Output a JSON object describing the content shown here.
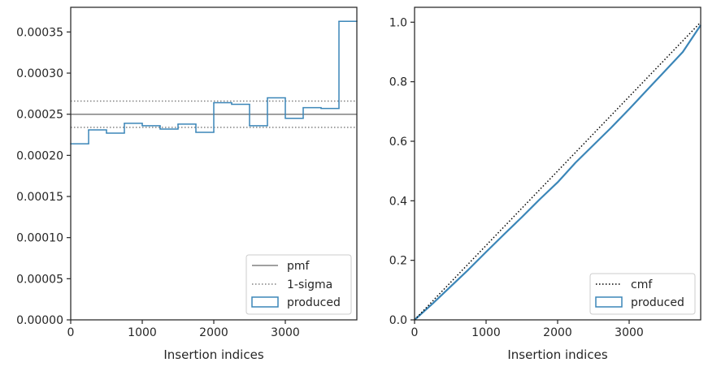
{
  "chart_data": [
    {
      "type": "step",
      "xlabel": "Insertion indices",
      "xlim": [
        0,
        4000
      ],
      "ylim": [
        0,
        0.00038
      ],
      "x_ticks": [
        0,
        1000,
        2000,
        3000
      ],
      "x_tick_labels": [
        "0",
        "1000",
        "2000",
        "3000"
      ],
      "y_ticks": [
        0,
        5e-05,
        0.0001,
        0.00015,
        0.0002,
        0.00025,
        0.0003,
        0.00035
      ],
      "y_tick_labels": [
        "0.00000",
        "0.00005",
        "0.00010",
        "0.00015",
        "0.00020",
        "0.00025",
        "0.00030",
        "0.00035"
      ],
      "bin_edges": [
        0,
        250,
        500,
        750,
        1000,
        1250,
        1500,
        1750,
        2000,
        2250,
        2500,
        2750,
        3000,
        3250,
        3500,
        3750,
        4000
      ],
      "values": [
        0.000214,
        0.000231,
        0.000227,
        0.000239,
        0.000236,
        0.000232,
        0.000238,
        0.000228,
        0.000264,
        0.000262,
        0.000236,
        0.00027,
        0.000245,
        0.000258,
        0.000257,
        0.000363
      ],
      "pmf": 0.00025,
      "sigma_band": [
        0.000234,
        0.000266
      ],
      "legend": {
        "position": "lower-right",
        "entries": [
          "pmf",
          "1-sigma",
          "produced"
        ]
      },
      "colors": {
        "produced": "#3b86b8",
        "reference": "#808080"
      }
    },
    {
      "type": "line",
      "xlabel": "Insertion indices",
      "xlim": [
        0,
        4000
      ],
      "ylim": [
        0,
        1.05
      ],
      "x_ticks": [
        0,
        1000,
        2000,
        3000
      ],
      "x_tick_labels": [
        "0",
        "1000",
        "2000",
        "3000"
      ],
      "y_ticks": [
        0,
        0.2,
        0.4,
        0.6,
        0.8,
        1.0
      ],
      "y_tick_labels": [
        "0.0",
        "0.2",
        "0.4",
        "0.6",
        "0.8",
        "1.0"
      ],
      "cmf": {
        "x": [
          0,
          4000
        ],
        "y": [
          0,
          1
        ]
      },
      "produced": {
        "x": [
          0,
          250,
          500,
          750,
          1000,
          1250,
          1500,
          1750,
          2000,
          2250,
          2500,
          2750,
          3000,
          3250,
          3500,
          3750,
          4000
        ],
        "y": [
          0,
          0.054,
          0.111,
          0.168,
          0.228,
          0.287,
          0.345,
          0.405,
          0.462,
          0.528,
          0.587,
          0.646,
          0.708,
          0.772,
          0.836,
          0.9,
          0.99
        ]
      },
      "legend": {
        "position": "lower-right",
        "entries": [
          "cmf",
          "produced"
        ]
      },
      "colors": {
        "produced": "#3b86b8",
        "cmf": "#000000"
      }
    }
  ]
}
